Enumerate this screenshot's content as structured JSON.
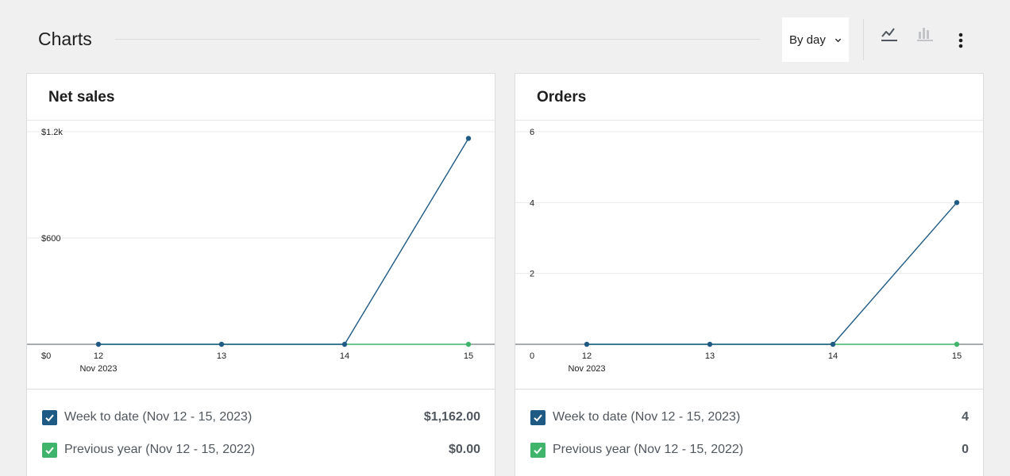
{
  "header": {
    "title": "Charts",
    "period_label": "By day",
    "line_icon": "line-chart-icon",
    "bar_icon": "bar-chart-icon",
    "more_icon": "more-vertical-icon"
  },
  "colors": {
    "current": "#1f5a85",
    "previous": "#3fb46a",
    "grid": "#e9e9e9",
    "axis": "#50575e"
  },
  "chart_data": [
    {
      "type": "line",
      "title": "Net sales",
      "x": [
        "12",
        "13",
        "14",
        "15"
      ],
      "x_sub": "Nov 2023",
      "y_ticks": [
        {
          "v": 0,
          "label": "$0"
        },
        {
          "v": 600,
          "label": "$600"
        },
        {
          "v": 1200,
          "label": "$1.2k"
        }
      ],
      "ylim": [
        0,
        1200
      ],
      "series": [
        {
          "name": "Week to date (Nov 12 - 15, 2023)",
          "values": [
            0,
            0,
            0,
            1162
          ],
          "total": "$1,162.00",
          "color": "#1f5a85"
        },
        {
          "name": "Previous year (Nov 12 - 15, 2022)",
          "values": [
            0,
            0,
            0,
            0
          ],
          "total": "$0.00",
          "color": "#3fb46a"
        }
      ]
    },
    {
      "type": "line",
      "title": "Orders",
      "x": [
        "12",
        "13",
        "14",
        "15"
      ],
      "x_sub": "Nov 2023",
      "y_ticks": [
        {
          "v": 0,
          "label": "0"
        },
        {
          "v": 2,
          "label": "2"
        },
        {
          "v": 4,
          "label": "4"
        },
        {
          "v": 6,
          "label": "6"
        }
      ],
      "ylim": [
        0,
        6
      ],
      "series": [
        {
          "name": "Week to date (Nov 12 - 15, 2023)",
          "values": [
            0,
            0,
            0,
            4
          ],
          "total": "4",
          "color": "#1f5a85"
        },
        {
          "name": "Previous year (Nov 12 - 15, 2022)",
          "values": [
            0,
            0,
            0,
            0
          ],
          "total": "0",
          "color": "#3fb46a"
        }
      ]
    }
  ]
}
